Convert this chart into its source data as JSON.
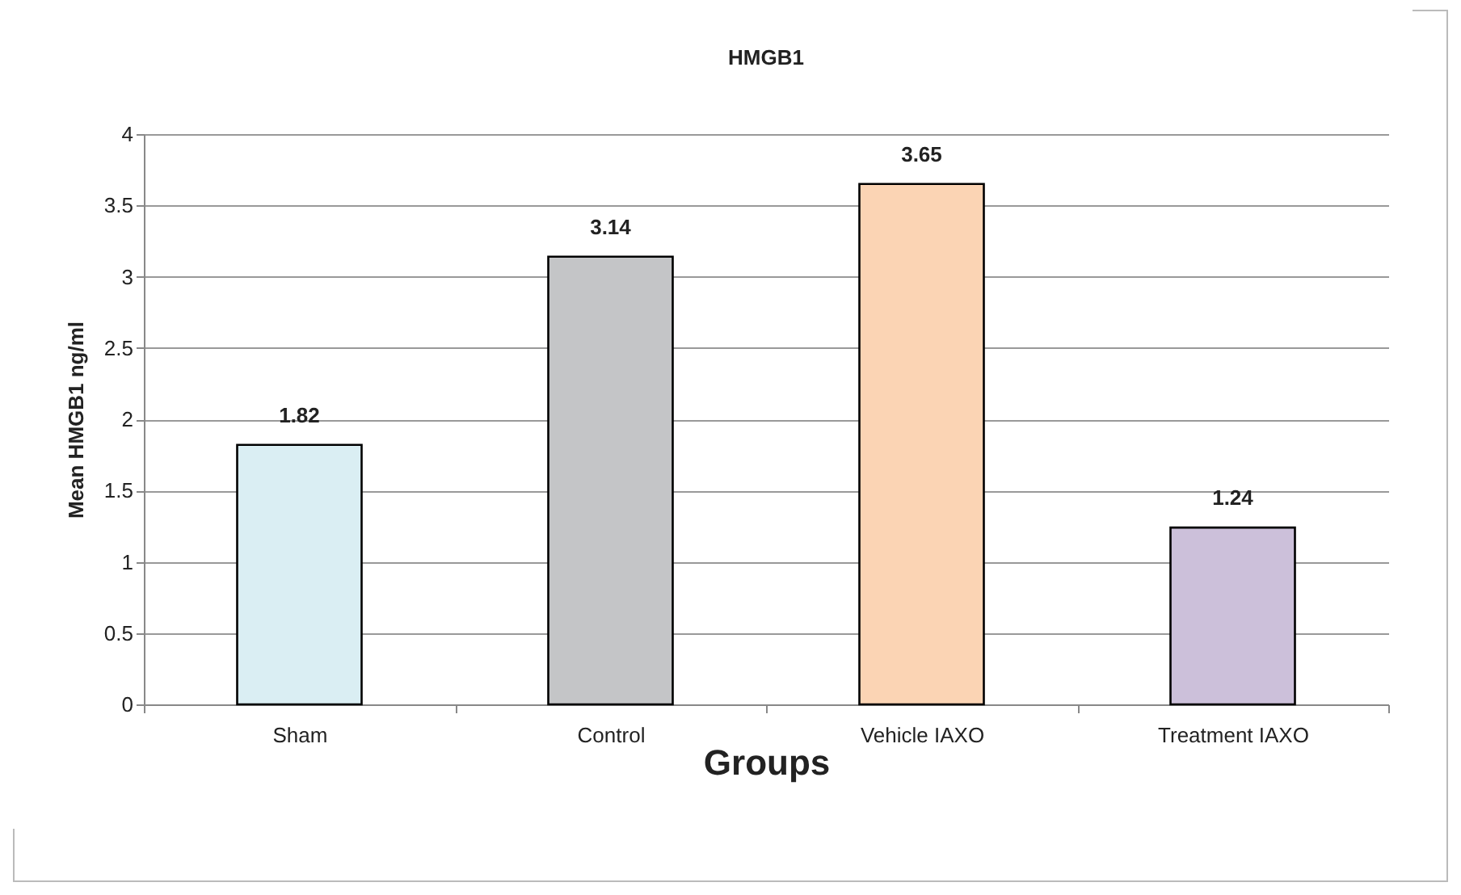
{
  "chart_data": {
    "type": "bar",
    "title": "HMGB1",
    "xlabel": "Groups",
    "ylabel": "Mean HMGB1 ng/ml",
    "categories": [
      "Sham",
      "Control",
      "Vehicle IAXO",
      "Treatment IAXO"
    ],
    "values": [
      1.82,
      3.14,
      3.65,
      1.24
    ],
    "colors": [
      "#daeef3",
      "#c4c5c7",
      "#fbd4b4",
      "#ccc0da"
    ],
    "ylim": [
      0,
      4
    ],
    "yticks": [
      0,
      0.5,
      1,
      1.5,
      2,
      2.5,
      3,
      3.5,
      4
    ],
    "grid": "y",
    "data_labels": true
  }
}
